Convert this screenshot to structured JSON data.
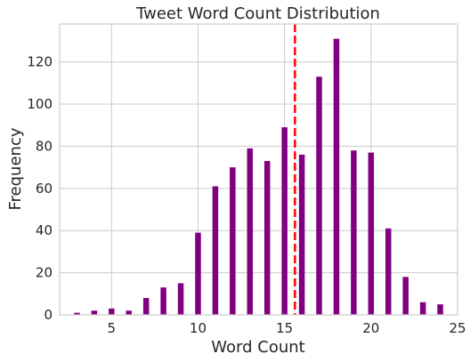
{
  "chart_data": {
    "type": "bar",
    "title": "Tweet Word Count Distribution",
    "xlabel": "Word Count",
    "ylabel": "Frequency",
    "xlim": [
      2.0,
      25.0
    ],
    "ylim": [
      0,
      138
    ],
    "xticks": [
      5,
      10,
      15,
      20,
      25
    ],
    "yticks": [
      0,
      20,
      40,
      60,
      80,
      100,
      120
    ],
    "grid": true,
    "bar_color": "#800080",
    "mean_line": {
      "x": 15.6,
      "color": "#ff0000",
      "style": "dashed"
    },
    "x": [
      3,
      4,
      5,
      6,
      7,
      8,
      9,
      10,
      11,
      12,
      13,
      14,
      15,
      16,
      17,
      18,
      19,
      20,
      21,
      22,
      23,
      24
    ],
    "values": [
      1,
      2,
      3,
      2,
      8,
      13,
      15,
      39,
      61,
      70,
      79,
      73,
      89,
      76,
      113,
      131,
      78,
      77,
      41,
      18,
      6,
      5
    ]
  }
}
